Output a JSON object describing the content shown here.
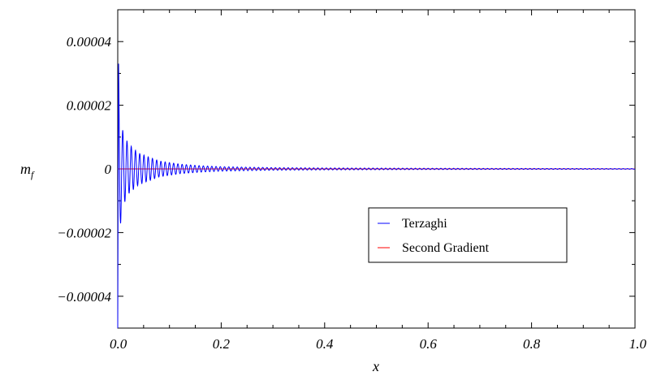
{
  "chart_data": {
    "type": "line",
    "xlabel": "x",
    "ylabel": "m",
    "ylabel_subscript": "f",
    "xlim": [
      0,
      1
    ],
    "ylim": [
      -5e-05,
      5e-05
    ],
    "x_ticks": [
      0,
      0.2,
      0.4,
      0.6,
      0.8,
      1.0
    ],
    "x_tick_labels": [
      "0.0",
      "0.2",
      "0.4",
      "0.6",
      "0.8",
      "1.0"
    ],
    "y_ticks": [
      -4e-05,
      -2e-05,
      0,
      2e-05,
      4e-05
    ],
    "y_tick_labels": [
      "−0.00004",
      "−0.00002",
      "0",
      "0.00002",
      "0.00004"
    ],
    "grid": false,
    "legend_position": "bottom-right",
    "series": [
      {
        "name": "Terzaghi",
        "color": "#0000ff",
        "pattern": "damped_oscillation",
        "x": [
          0,
          0.002,
          0.005,
          0.008,
          0.012,
          0.02,
          0.04,
          0.08,
          0.12,
          0.16,
          0.2,
          0.3,
          0.4,
          0.6,
          0.8,
          1.0
        ],
        "envelope": [
          5e-05,
          3e-05,
          1.8e-05,
          1.3e-05,
          1.1e-05,
          8e-06,
          5e-06,
          2.5e-06,
          1.5e-06,
          1e-06,
          7e-07,
          4e-07,
          3e-07,
          2e-07,
          1.5e-07,
          1e-07
        ],
        "cycle_length": 0.0082
      },
      {
        "name": "Second Gradient",
        "color": "#ff0000",
        "pattern": "near_zero",
        "x": [
          0,
          1
        ],
        "values": [
          0,
          0
        ]
      }
    ]
  }
}
